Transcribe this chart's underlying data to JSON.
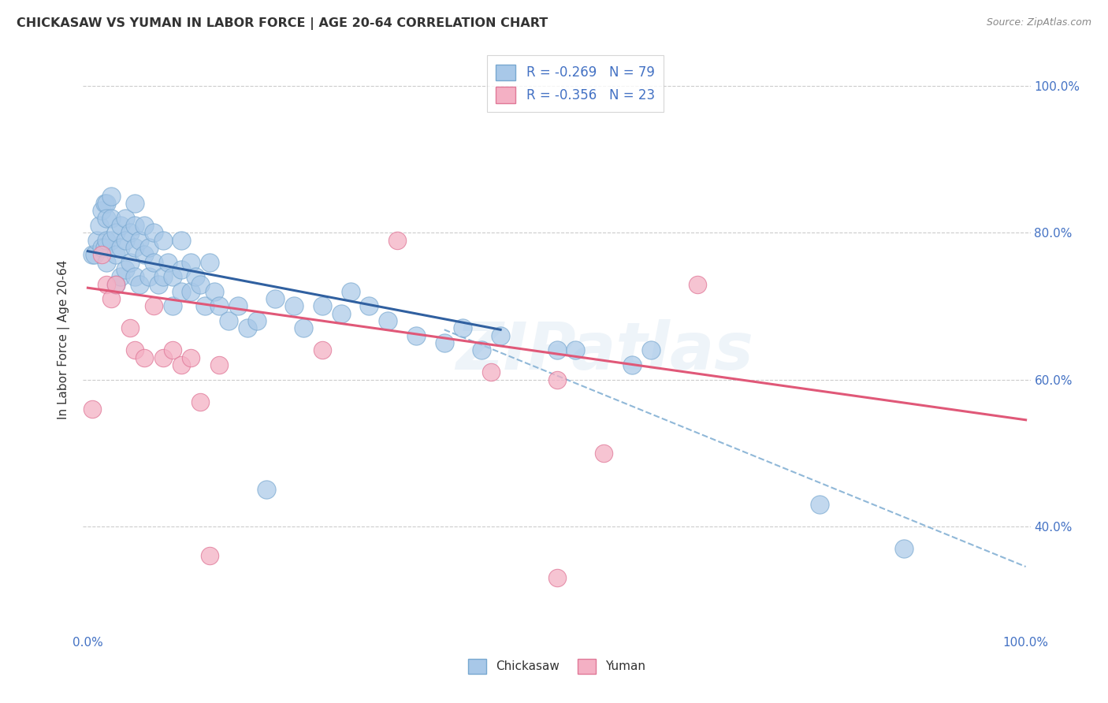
{
  "title": "CHICKASAW VS YUMAN IN LABOR FORCE | AGE 20-64 CORRELATION CHART",
  "source_text": "Source: ZipAtlas.com",
  "ylabel": "In Labor Force | Age 20-64",
  "watermark": "ZIPatlas",
  "chickasaw_R": -0.269,
  "chickasaw_N": 79,
  "yuman_R": -0.356,
  "yuman_N": 23,
  "chickasaw_color": "#a8c8e8",
  "chickasaw_edge": "#78a8d0",
  "yuman_color": "#f4b0c4",
  "yuman_edge": "#e07898",
  "blue_line_color": "#3060a0",
  "pink_line_color": "#e05878",
  "dashed_line_color": "#90b8d8",
  "right_axis_color": "#4472c4",
  "legend_text_color": "#4472c4",
  "xlim": [
    -0.005,
    1.005
  ],
  "ylim": [
    0.255,
    1.055
  ],
  "yticks": [
    0.4,
    0.6,
    0.8,
    1.0
  ],
  "ytick_labels_right": [
    "40.0%",
    "60.0%",
    "80.0%",
    "100.0%"
  ],
  "xtick_positions": [
    0.0,
    0.5,
    1.0
  ],
  "xtick_labels": [
    "0.0%",
    "",
    "100.0%"
  ],
  "blue_line": [
    [
      0.0,
      0.775
    ],
    [
      0.44,
      0.668
    ]
  ],
  "pink_line": [
    [
      0.0,
      0.725
    ],
    [
      1.0,
      0.545
    ]
  ],
  "dashed_line": [
    [
      0.38,
      0.668
    ],
    [
      1.0,
      0.345
    ]
  ],
  "chickasaw_x": [
    0.005,
    0.007,
    0.01,
    0.012,
    0.015,
    0.015,
    0.018,
    0.018,
    0.02,
    0.02,
    0.02,
    0.02,
    0.025,
    0.025,
    0.025,
    0.03,
    0.03,
    0.03,
    0.035,
    0.035,
    0.035,
    0.04,
    0.04,
    0.04,
    0.045,
    0.045,
    0.05,
    0.05,
    0.05,
    0.05,
    0.055,
    0.055,
    0.06,
    0.06,
    0.065,
    0.065,
    0.07,
    0.07,
    0.075,
    0.08,
    0.08,
    0.085,
    0.09,
    0.09,
    0.1,
    0.1,
    0.1,
    0.11,
    0.11,
    0.115,
    0.12,
    0.125,
    0.13,
    0.135,
    0.14,
    0.15,
    0.16,
    0.17,
    0.18,
    0.19,
    0.2,
    0.22,
    0.23,
    0.25,
    0.27,
    0.28,
    0.3,
    0.32,
    0.35,
    0.38,
    0.4,
    0.42,
    0.44,
    0.5,
    0.52,
    0.58,
    0.6,
    0.78,
    0.87
  ],
  "chickasaw_y": [
    0.77,
    0.77,
    0.79,
    0.81,
    0.83,
    0.78,
    0.84,
    0.78,
    0.84,
    0.82,
    0.79,
    0.76,
    0.85,
    0.82,
    0.79,
    0.8,
    0.77,
    0.73,
    0.81,
    0.78,
    0.74,
    0.82,
    0.79,
    0.75,
    0.8,
    0.76,
    0.84,
    0.81,
    0.78,
    0.74,
    0.79,
    0.73,
    0.81,
    0.77,
    0.78,
    0.74,
    0.8,
    0.76,
    0.73,
    0.79,
    0.74,
    0.76,
    0.74,
    0.7,
    0.79,
    0.75,
    0.72,
    0.76,
    0.72,
    0.74,
    0.73,
    0.7,
    0.76,
    0.72,
    0.7,
    0.68,
    0.7,
    0.67,
    0.68,
    0.45,
    0.71,
    0.7,
    0.67,
    0.7,
    0.69,
    0.72,
    0.7,
    0.68,
    0.66,
    0.65,
    0.67,
    0.64,
    0.66,
    0.64,
    0.64,
    0.62,
    0.64,
    0.43,
    0.37
  ],
  "yuman_x": [
    0.005,
    0.015,
    0.02,
    0.025,
    0.03,
    0.045,
    0.05,
    0.06,
    0.07,
    0.08,
    0.09,
    0.1,
    0.11,
    0.12,
    0.13,
    0.14,
    0.25,
    0.33,
    0.43,
    0.5,
    0.55,
    0.65,
    0.5
  ],
  "yuman_y": [
    0.56,
    0.77,
    0.73,
    0.71,
    0.73,
    0.67,
    0.64,
    0.63,
    0.7,
    0.63,
    0.64,
    0.62,
    0.63,
    0.57,
    0.36,
    0.62,
    0.64,
    0.79,
    0.61,
    0.6,
    0.5,
    0.73,
    0.33
  ]
}
